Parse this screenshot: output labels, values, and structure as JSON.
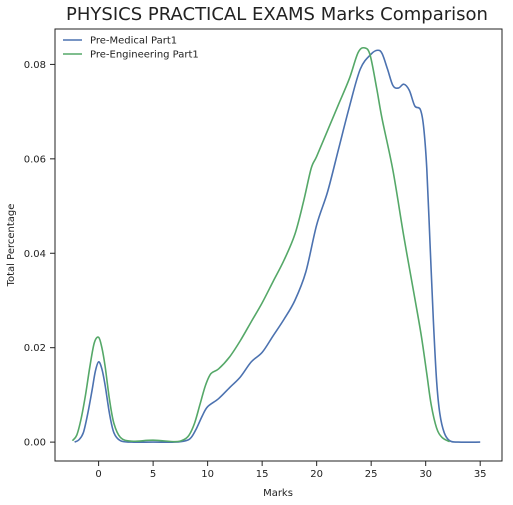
{
  "chart_data": {
    "type": "line",
    "title": "PHYSICS PRACTICAL EXAMS Marks Comparison",
    "xlabel": "Marks",
    "ylabel": "Total Percentage",
    "xlim": [
      -4,
      37
    ],
    "ylim": [
      -0.004,
      0.0875
    ],
    "xticks": [
      0,
      5,
      10,
      15,
      20,
      25,
      30,
      35
    ],
    "yticks": [
      0.0,
      0.02,
      0.04,
      0.06,
      0.08
    ],
    "ytick_labels": [
      "0.00",
      "0.02",
      "0.04",
      "0.06",
      "0.08"
    ],
    "grid": false,
    "legend_position": "top-left",
    "series": [
      {
        "name": "Pre-Medical Part1",
        "color": "#4c72b0",
        "points": [
          [
            -2.2,
            0.0
          ],
          [
            -1.8,
            0.0005
          ],
          [
            -1.4,
            0.002
          ],
          [
            -1.0,
            0.006
          ],
          [
            -0.6,
            0.011
          ],
          [
            -0.3,
            0.015
          ],
          [
            0.0,
            0.017
          ],
          [
            0.3,
            0.0155
          ],
          [
            0.6,
            0.012
          ],
          [
            1.0,
            0.006
          ],
          [
            1.4,
            0.002
          ],
          [
            2.0,
            0.0003
          ],
          [
            3.0,
            0.0
          ],
          [
            5.0,
            0.0
          ],
          [
            7.0,
            0.0
          ],
          [
            8.0,
            0.0003
          ],
          [
            8.5,
            0.001
          ],
          [
            9.0,
            0.003
          ],
          [
            9.5,
            0.0055
          ],
          [
            10.0,
            0.0075
          ],
          [
            11.0,
            0.0092
          ],
          [
            12.0,
            0.0115
          ],
          [
            13.0,
            0.0138
          ],
          [
            14.0,
            0.017
          ],
          [
            15.0,
            0.019
          ],
          [
            16.0,
            0.0225
          ],
          [
            17.0,
            0.026
          ],
          [
            18.0,
            0.03
          ],
          [
            19.0,
            0.036
          ],
          [
            20.0,
            0.046
          ],
          [
            21.0,
            0.053
          ],
          [
            22.0,
            0.062
          ],
          [
            23.0,
            0.071
          ],
          [
            24.0,
            0.079
          ],
          [
            25.0,
            0.0822
          ],
          [
            25.6,
            0.083
          ],
          [
            26.0,
            0.0823
          ],
          [
            26.5,
            0.079
          ],
          [
            27.0,
            0.0755
          ],
          [
            27.5,
            0.075
          ],
          [
            28.0,
            0.0758
          ],
          [
            28.5,
            0.0745
          ],
          [
            29.0,
            0.0712
          ],
          [
            29.5,
            0.0705
          ],
          [
            29.8,
            0.067
          ],
          [
            30.1,
            0.058
          ],
          [
            30.4,
            0.042
          ],
          [
            30.7,
            0.026
          ],
          [
            31.0,
            0.013
          ],
          [
            31.3,
            0.006
          ],
          [
            31.7,
            0.002
          ],
          [
            32.2,
            0.0003
          ],
          [
            33.0,
            0.0
          ],
          [
            35.0,
            0.0
          ]
        ]
      },
      {
        "name": "Pre-Engineering Part1",
        "color": "#55a868",
        "points": [
          [
            -2.4,
            0.0003
          ],
          [
            -2.0,
            0.0015
          ],
          [
            -1.6,
            0.005
          ],
          [
            -1.2,
            0.01
          ],
          [
            -0.8,
            0.016
          ],
          [
            -0.4,
            0.021
          ],
          [
            0.0,
            0.0222
          ],
          [
            0.3,
            0.02
          ],
          [
            0.6,
            0.016
          ],
          [
            1.0,
            0.009
          ],
          [
            1.4,
            0.004
          ],
          [
            2.0,
            0.001
          ],
          [
            3.0,
            0.0002
          ],
          [
            5.0,
            0.0004
          ],
          [
            7.0,
            0.0001
          ],
          [
            7.8,
            0.0005
          ],
          [
            8.3,
            0.0015
          ],
          [
            8.8,
            0.004
          ],
          [
            9.3,
            0.008
          ],
          [
            9.8,
            0.012
          ],
          [
            10.3,
            0.0145
          ],
          [
            11.0,
            0.0155
          ],
          [
            12.0,
            0.018
          ],
          [
            13.0,
            0.0215
          ],
          [
            14.0,
            0.0255
          ],
          [
            15.0,
            0.0295
          ],
          [
            16.0,
            0.034
          ],
          [
            17.0,
            0.0385
          ],
          [
            18.0,
            0.044
          ],
          [
            18.8,
            0.051
          ],
          [
            19.5,
            0.058
          ],
          [
            20.0,
            0.0605
          ],
          [
            21.0,
            0.066
          ],
          [
            22.0,
            0.0715
          ],
          [
            23.0,
            0.077
          ],
          [
            23.8,
            0.0825
          ],
          [
            24.4,
            0.0835
          ],
          [
            24.9,
            0.082
          ],
          [
            25.5,
            0.075
          ],
          [
            26.0,
            0.0685
          ],
          [
            27.0,
            0.0575
          ],
          [
            28.0,
            0.0435
          ],
          [
            29.0,
            0.0305
          ],
          [
            29.6,
            0.0225
          ],
          [
            30.1,
            0.0145
          ],
          [
            30.5,
            0.008
          ],
          [
            31.0,
            0.003
          ],
          [
            31.5,
            0.001
          ],
          [
            32.2,
            0.0001
          ]
        ]
      }
    ]
  }
}
